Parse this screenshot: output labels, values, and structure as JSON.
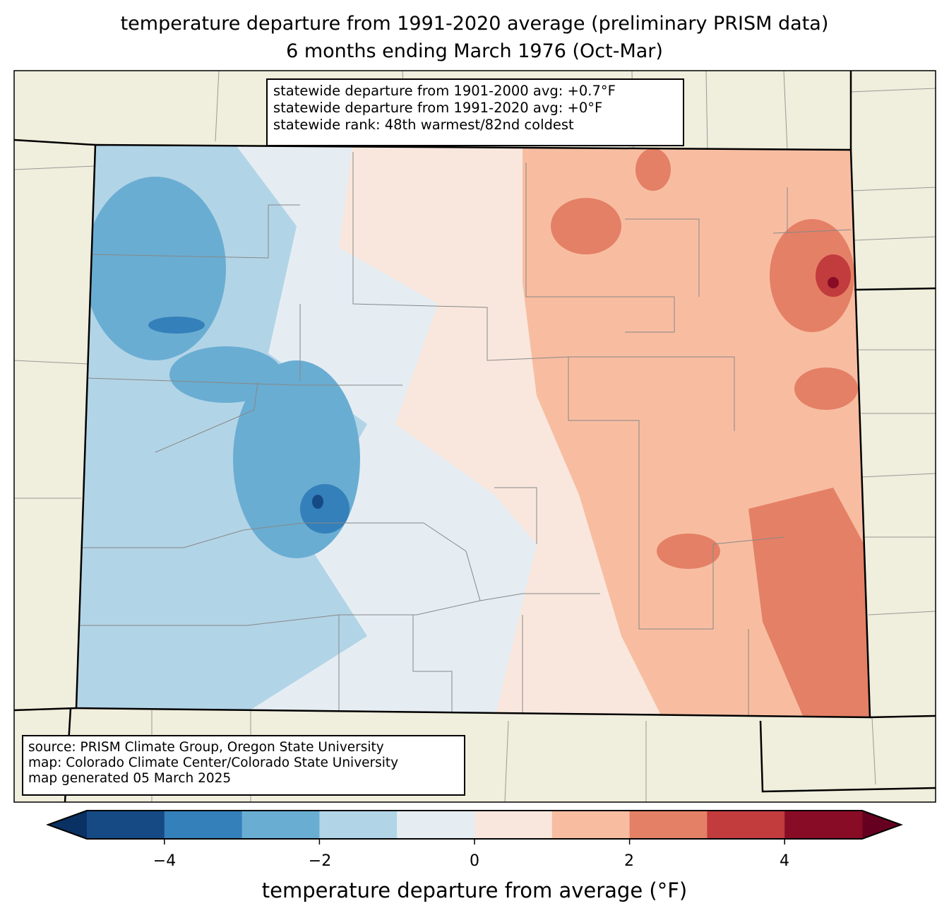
{
  "title": {
    "line1": "temperature departure from 1991-2020 average (preliminary PRISM data)",
    "line2": "6 months ending March 1976 (Oct-Mar)"
  },
  "stats_box": {
    "line1": "statewide departure from 1901-2000 avg: +0.7°F",
    "line2": "statewide departure from 1991-2020 avg: +0°F",
    "line3": "statewide rank: 48th warmest/82nd coldest"
  },
  "source_box": {
    "line1": "source: PRISM Climate Group, Oregon State University",
    "line2": "map: Colorado Climate Center/Colorado State University",
    "line3": "map generated 05 March 2025"
  },
  "colorbar": {
    "label": "temperature departure from average (°F)",
    "ticks": [
      "−4",
      "−2",
      "0",
      "2",
      "4"
    ],
    "bounds": [
      -5,
      -4,
      -3,
      -2,
      -1,
      0,
      1,
      2,
      3,
      4,
      5
    ],
    "colors": [
      "#164a85",
      "#3480ba",
      "#6aadd2",
      "#b2d4e7",
      "#e5edf3",
      "#f9e7dd",
      "#f8bda1",
      "#e48066",
      "#c23b3d",
      "#890c26"
    ],
    "extend_low": "#093163",
    "extend_high": "#650020"
  },
  "map": {
    "background": "#f0eedc"
  }
}
